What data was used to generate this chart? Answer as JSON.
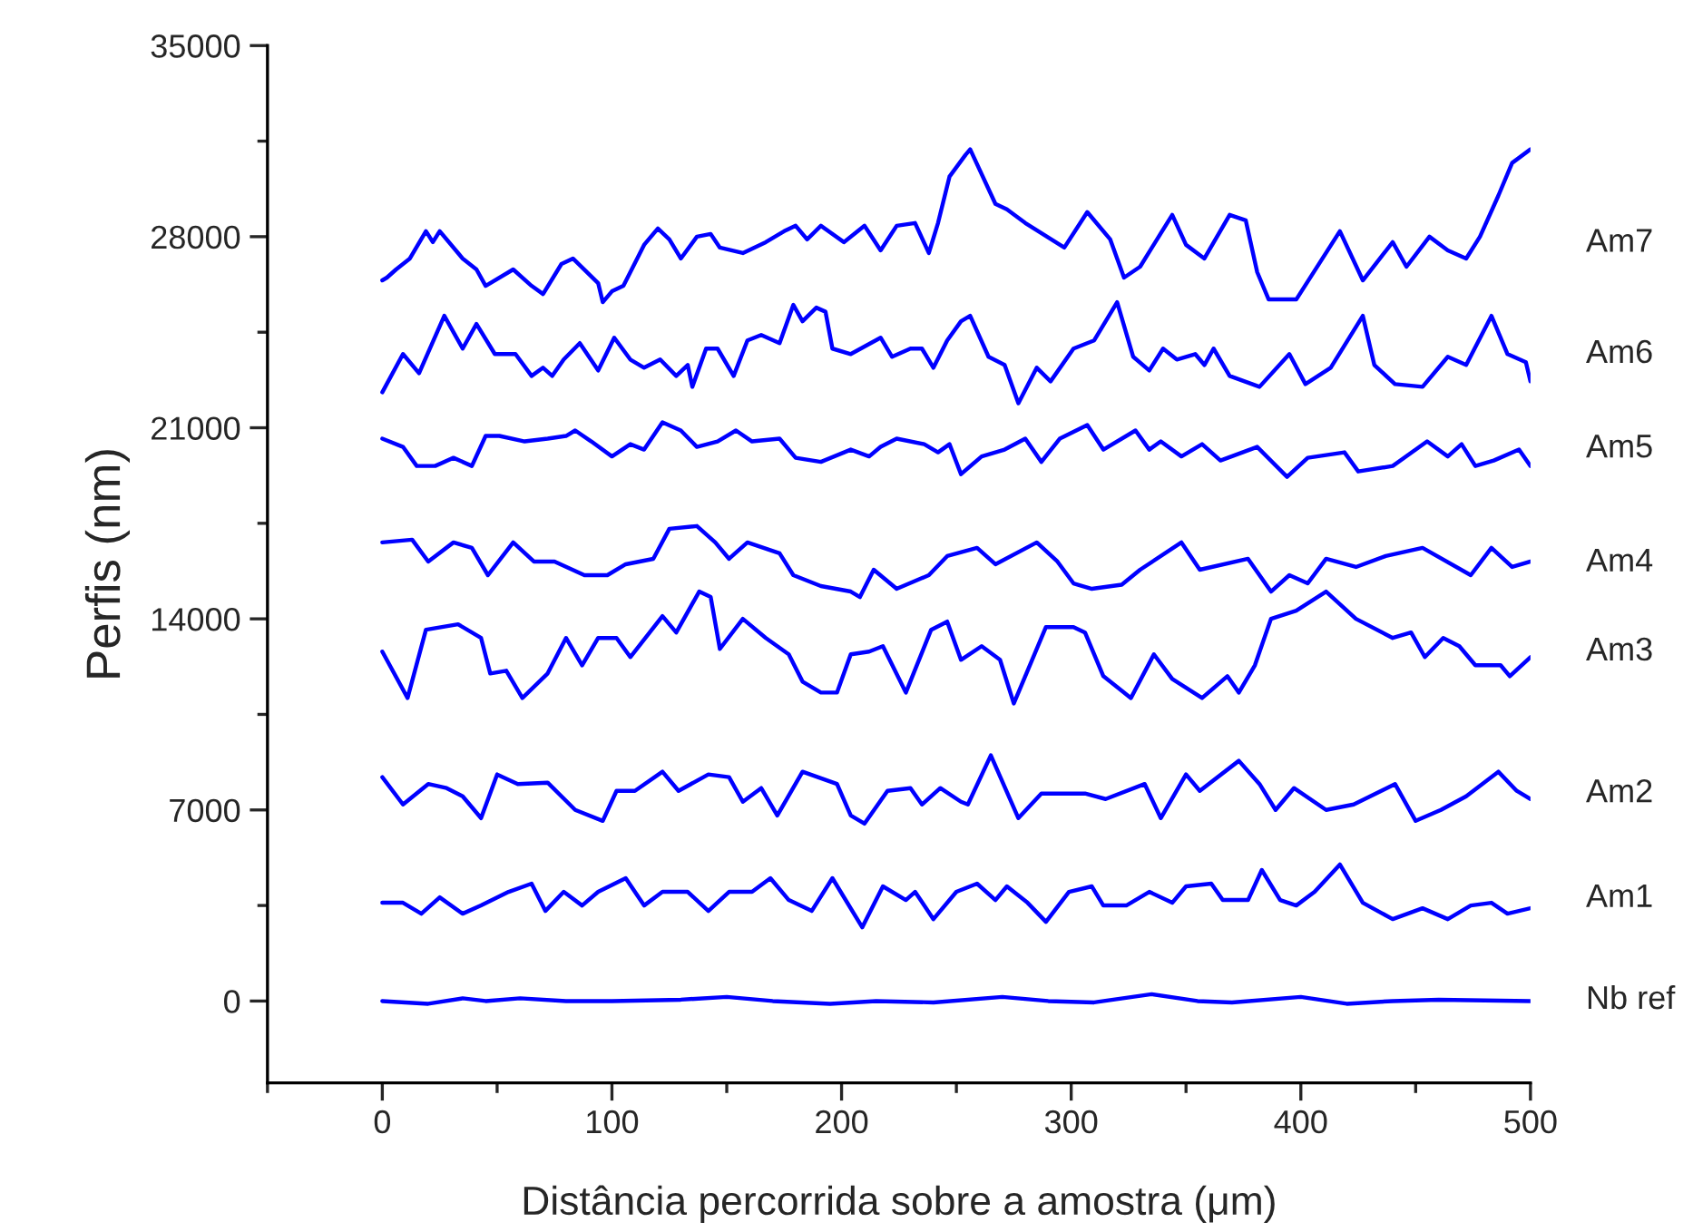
{
  "chart_data": {
    "type": "line",
    "xlabel": "Distância percorrida sobre a amostra (μm)",
    "ylabel": "Perfis (nm)",
    "xlim": [
      -50,
      500
    ],
    "xticks": [
      0,
      100,
      200,
      300,
      400,
      500
    ],
    "ylim": [
      -3000,
      35000
    ],
    "yticks": [
      0,
      7000,
      14000,
      21000,
      28000,
      35000
    ],
    "grid": false,
    "legend": false,
    "marker": "none",
    "line_style": "solid",
    "series": [
      {
        "name": "Am7",
        "color": "#0000ff",
        "x": [
          0,
          2,
          6,
          12,
          19,
          22,
          25,
          35,
          41,
          45,
          57,
          65,
          70,
          78,
          83,
          94,
          96,
          100,
          105,
          114,
          120,
          125,
          130,
          137,
          143,
          147,
          157,
          167,
          175,
          180,
          185,
          191,
          201,
          210,
          217,
          224,
          232,
          238,
          242,
          247,
          254,
          256,
          267,
          272,
          280,
          297,
          307,
          317,
          323,
          330,
          344,
          350,
          358,
          369,
          376,
          381,
          386,
          398,
          417,
          427,
          440,
          446,
          456,
          464,
          472,
          478,
          486,
          492,
          500
        ],
        "values": [
          26400,
          26500,
          26800,
          27200,
          28200,
          27800,
          28200,
          27200,
          26800,
          26200,
          26800,
          26200,
          25900,
          27000,
          27200,
          26300,
          25600,
          26000,
          26200,
          27700,
          28300,
          27900,
          27200,
          28000,
          28100,
          27600,
          27400,
          27800,
          28200,
          28400,
          27900,
          28400,
          27800,
          28400,
          27500,
          28400,
          28500,
          27400,
          28500,
          30200,
          31000,
          31200,
          29200,
          29000,
          28500,
          27600,
          28900,
          27900,
          26500,
          26900,
          28800,
          27700,
          27200,
          28800,
          28600,
          26700,
          25700,
          25700,
          28200,
          26400,
          27800,
          26900,
          28000,
          27500,
          27200,
          28000,
          29500,
          30700,
          31200
        ]
      },
      {
        "name": "Am6",
        "color": "#0000ff",
        "x": [
          0,
          9,
          16,
          27,
          35,
          41,
          49,
          58,
          65,
          70,
          74,
          79,
          86,
          94,
          101,
          108,
          114,
          121,
          128,
          133,
          135,
          141,
          146,
          153,
          159,
          165,
          173,
          179,
          183,
          189,
          193,
          196,
          204,
          217,
          222,
          230,
          235,
          240,
          246,
          252,
          256,
          264,
          271,
          277,
          285,
          291,
          301,
          310,
          320,
          327,
          334,
          340,
          346,
          354,
          358,
          362,
          369,
          382,
          395,
          402,
          413,
          427,
          432,
          441,
          453,
          464,
          472,
          483,
          490,
          498,
          500
        ],
        "values": [
          22300,
          23700,
          23000,
          25100,
          23900,
          24800,
          23700,
          23700,
          22900,
          23200,
          22900,
          23500,
          24100,
          23100,
          24300,
          23500,
          23200,
          23500,
          22900,
          23300,
          22500,
          23900,
          23900,
          22900,
          24200,
          24400,
          24100,
          25500,
          24900,
          25400,
          25250,
          23900,
          23700,
          24300,
          23600,
          23900,
          23900,
          23200,
          24200,
          24900,
          25100,
          23600,
          23300,
          21900,
          23200,
          22700,
          23900,
          24200,
          25600,
          23600,
          23100,
          23900,
          23500,
          23700,
          23300,
          23900,
          22900,
          22500,
          23700,
          22600,
          23200,
          25100,
          23300,
          22600,
          22500,
          23600,
          23300,
          25100,
          23700,
          23400,
          22700
        ]
      },
      {
        "name": "Am5",
        "color": "#0000ff",
        "x": [
          0,
          9,
          15,
          23,
          31,
          39,
          45,
          51,
          62,
          72,
          80,
          84,
          91,
          100,
          108,
          114,
          122,
          130,
          137,
          146,
          154,
          161,
          173,
          180,
          191,
          204,
          212,
          217,
          224,
          236,
          242,
          247,
          252,
          261,
          271,
          280,
          287,
          295,
          307,
          314,
          328,
          334,
          339,
          348,
          357,
          365,
          381,
          394,
          403,
          419,
          425,
          440,
          455,
          464,
          470,
          476,
          484,
          495,
          500
        ],
        "values": [
          20600,
          20300,
          19600,
          19600,
          19900,
          19600,
          20700,
          20700,
          20500,
          20600,
          20700,
          20900,
          20500,
          19950,
          20400,
          20200,
          21200,
          20900,
          20300,
          20500,
          20900,
          20500,
          20600,
          19900,
          19750,
          20200,
          19950,
          20300,
          20600,
          20400,
          20100,
          20400,
          19300,
          19950,
          20200,
          20600,
          19750,
          20600,
          21100,
          20200,
          20900,
          20200,
          20500,
          19950,
          20400,
          19800,
          20300,
          19200,
          19900,
          20100,
          19400,
          19600,
          20500,
          19950,
          20400,
          19600,
          19800,
          20200,
          19600
        ]
      },
      {
        "name": "Am4",
        "color": "#0000ff",
        "x": [
          0,
          13,
          20,
          31,
          39,
          46,
          57,
          66,
          75,
          88,
          98,
          106,
          118,
          125,
          137,
          145,
          151,
          159,
          173,
          179,
          191,
          204,
          208,
          214,
          224,
          238,
          246,
          259,
          267,
          285,
          294,
          301,
          309,
          322,
          330,
          348,
          356,
          377,
          387,
          395,
          403,
          411,
          424,
          437,
          453,
          474,
          483,
          492,
          500
        ],
        "values": [
          16800,
          16900,
          16100,
          16800,
          16600,
          15600,
          16800,
          16100,
          16100,
          15600,
          15600,
          16000,
          16200,
          17300,
          17400,
          16800,
          16200,
          16800,
          16400,
          15600,
          15200,
          15000,
          14800,
          15800,
          15100,
          15600,
          16300,
          16600,
          16000,
          16800,
          16100,
          15300,
          15100,
          15250,
          15800,
          16800,
          15800,
          16200,
          15000,
          15600,
          15300,
          16200,
          15900,
          16300,
          16600,
          15600,
          16600,
          15900,
          16100
        ]
      },
      {
        "name": "Am3",
        "color": "#0000ff",
        "x": [
          0,
          11,
          19,
          33,
          43,
          47,
          54,
          61,
          72,
          80,
          87,
          94,
          102,
          108,
          122,
          128,
          138,
          143,
          147,
          157,
          167,
          177,
          183,
          191,
          198,
          204,
          212,
          218,
          228,
          239,
          246,
          252,
          261,
          269,
          275,
          289,
          301,
          306,
          314,
          326,
          336,
          344,
          357,
          368,
          373,
          380,
          387,
          398,
          411,
          424,
          440,
          448,
          454,
          462,
          469,
          476,
          487,
          491,
          500
        ],
        "values": [
          12800,
          11100,
          13600,
          13800,
          13300,
          12000,
          12100,
          11100,
          12000,
          13300,
          12300,
          13300,
          13300,
          12600,
          14100,
          13500,
          15000,
          14800,
          12900,
          14000,
          13300,
          12700,
          11700,
          11300,
          11300,
          12700,
          12800,
          13000,
          11300,
          13600,
          13900,
          12500,
          13000,
          12500,
          10900,
          13700,
          13700,
          13500,
          11900,
          11100,
          12700,
          11800,
          11100,
          11900,
          11300,
          12300,
          14000,
          14300,
          15000,
          14000,
          13300,
          13500,
          12600,
          13300,
          13000,
          12300,
          12300,
          11900,
          12600
        ]
      },
      {
        "name": "Am2",
        "color": "#0000ff",
        "x": [
          0,
          9,
          20,
          28,
          35,
          43,
          50,
          59,
          72,
          84,
          96,
          102,
          110,
          122,
          129,
          142,
          151,
          157,
          165,
          172,
          183,
          198,
          204,
          210,
          220,
          230,
          235,
          243,
          252,
          255,
          265,
          277,
          287,
          306,
          315,
          332,
          339,
          350,
          356,
          373,
          382,
          389,
          397,
          411,
          423,
          441,
          450,
          461,
          472,
          486,
          494,
          500
        ],
        "values": [
          8200,
          7200,
          7950,
          7800,
          7500,
          6700,
          8300,
          7950,
          8000,
          7000,
          6600,
          7700,
          7700,
          8400,
          7700,
          8300,
          8200,
          7300,
          7800,
          6800,
          8400,
          7950,
          6800,
          6500,
          7700,
          7800,
          7200,
          7800,
          7300,
          7200,
          9000,
          6700,
          7600,
          7600,
          7400,
          7950,
          6700,
          8300,
          7700,
          8800,
          7950,
          7000,
          7800,
          7000,
          7200,
          7950,
          6600,
          7000,
          7500,
          8400,
          7700,
          7400
        ]
      },
      {
        "name": "Am1",
        "color": "#0000ff",
        "x": [
          0,
          9,
          17,
          25,
          35,
          43,
          55,
          65,
          71,
          79,
          87,
          94,
          106,
          114,
          122,
          133,
          142,
          151,
          161,
          169,
          177,
          187,
          196,
          209,
          218,
          228,
          232,
          240,
          250,
          259,
          267,
          272,
          281,
          289,
          299,
          309,
          314,
          324,
          334,
          344,
          350,
          361,
          366,
          377,
          383,
          391,
          398,
          406,
          417,
          427,
          440,
          453,
          464,
          474,
          483,
          490,
          500
        ],
        "values": [
          3600,
          3600,
          3200,
          3800,
          3200,
          3500,
          4000,
          4300,
          3300,
          4000,
          3500,
          4000,
          4500,
          3500,
          4000,
          4000,
          3300,
          4000,
          4000,
          4500,
          3700,
          3300,
          4500,
          2700,
          4200,
          3700,
          4000,
          3000,
          4000,
          4300,
          3700,
          4200,
          3600,
          2900,
          4000,
          4200,
          3500,
          3500,
          4000,
          3600,
          4200,
          4300,
          3700,
          3700,
          4800,
          3700,
          3500,
          4000,
          5000,
          3600,
          3000,
          3400,
          3000,
          3500,
          3600,
          3200,
          3400
        ]
      },
      {
        "name": "Nb ref",
        "color": "#0000ff",
        "x": [
          0,
          20,
          35,
          45,
          60,
          80,
          100,
          130,
          150,
          170,
          195,
          215,
          240,
          270,
          290,
          310,
          335,
          355,
          370,
          400,
          420,
          440,
          460,
          500
        ],
        "values": [
          0,
          -100,
          100,
          0,
          100,
          0,
          0,
          50,
          150,
          0,
          -100,
          0,
          -50,
          150,
          0,
          -50,
          250,
          0,
          -50,
          150,
          -100,
          0,
          50,
          0
        ]
      }
    ]
  }
}
